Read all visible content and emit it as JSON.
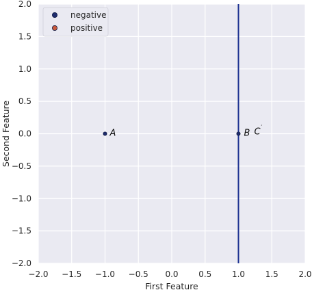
{
  "chart_data": {
    "type": "scatter",
    "xlabel": "First Feature",
    "ylabel": "Second Feature",
    "xlim": [
      -2.0,
      2.0
    ],
    "ylim": [
      -2.0,
      2.0
    ],
    "xticks": [
      -2.0,
      -1.5,
      -1.0,
      -0.5,
      0.0,
      0.5,
      1.0,
      1.5,
      2.0
    ],
    "yticks": [
      -2.0,
      -1.5,
      -1.0,
      -0.5,
      0.0,
      0.5,
      1.0,
      1.5,
      2.0
    ],
    "xtick_labels": [
      "−2.0",
      "−1.5",
      "−1.0",
      "−0.5",
      "0.0",
      "0.5",
      "1.0",
      "1.5",
      "2.0"
    ],
    "ytick_labels": [
      "−2.0",
      "−1.5",
      "−1.0",
      "−0.5",
      "0.0",
      "0.5",
      "1.0",
      "1.5",
      "2.0"
    ],
    "grid": true,
    "background_color": "#eaeaf2",
    "legend_position": "upper-left",
    "series": [
      {
        "name": "negative",
        "color": "#1f2d6e",
        "points": [
          {
            "x": -1.0,
            "y": 0.0
          },
          {
            "x": 1.0,
            "y": 0.0
          }
        ]
      },
      {
        "name": "positive",
        "color": "#c85a3c",
        "points": []
      }
    ],
    "decision_boundary": {
      "x": 1.0,
      "color": "#1a2f8f"
    },
    "annotations": [
      {
        "text": "A",
        "sup": "",
        "x": -1.0,
        "y": 0.0
      },
      {
        "text": "B",
        "sup": "",
        "x": 1.0,
        "y": 0.0
      },
      {
        "text": "C",
        "sup": "′",
        "x": 1.0,
        "y": 0.0
      }
    ]
  }
}
